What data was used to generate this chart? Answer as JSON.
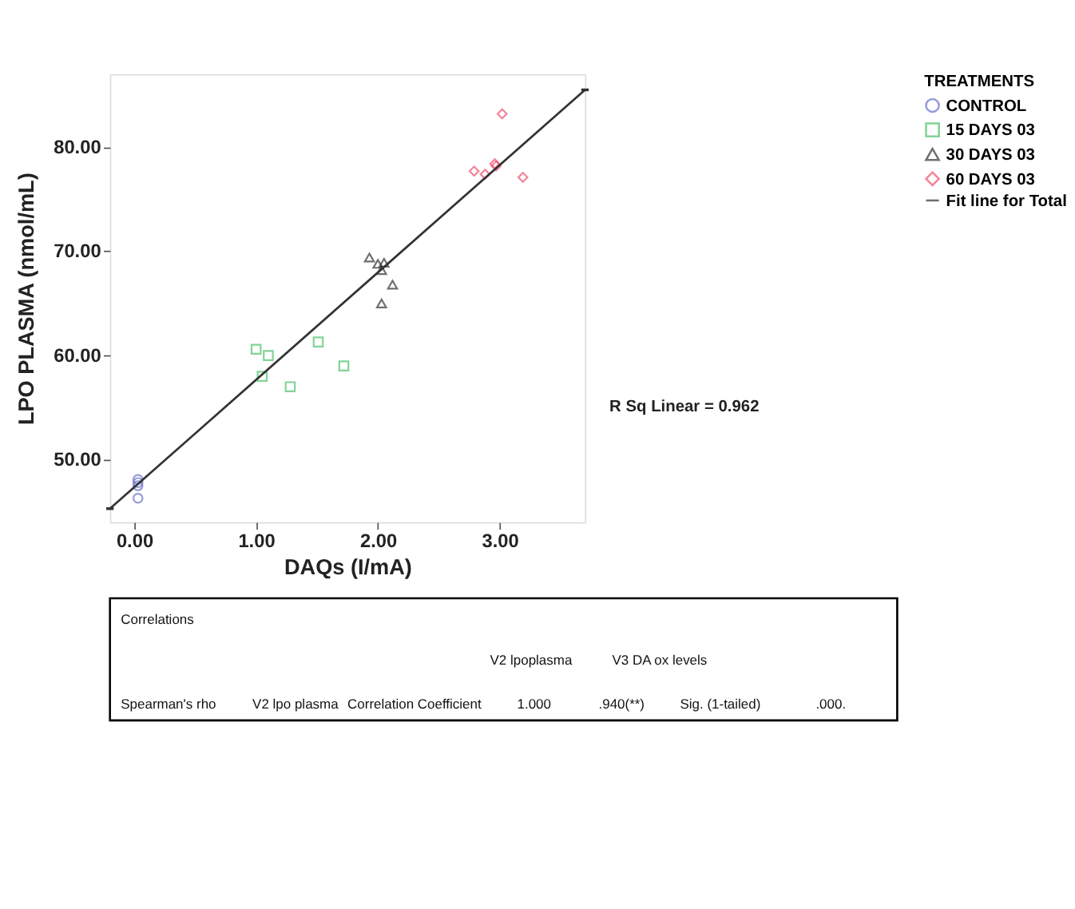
{
  "chart_data": {
    "type": "scatter",
    "xlabel": "DAQs (I/mA)",
    "ylabel": "LPO PLASMA (nmol/mL)",
    "legend_title": "TREATMENTS",
    "legend": "top right",
    "grid": false,
    "xlim": [
      -0.2,
      3.7
    ],
    "ylim": [
      44,
      87
    ],
    "xticks": [
      {
        "value": 0,
        "label": "0.00"
      },
      {
        "value": 1,
        "label": "1.00"
      },
      {
        "value": 2,
        "label": "2.00"
      },
      {
        "value": 3,
        "label": "3.00"
      }
    ],
    "yticks": [
      {
        "value": 50,
        "label": "50.00"
      },
      {
        "value": 60,
        "label": "60.00"
      },
      {
        "value": 70,
        "label": "70.00"
      },
      {
        "value": 80,
        "label": "80.00"
      }
    ],
    "series": [
      {
        "name": "CONTROL",
        "color": "#6b74c8",
        "marker": "circle",
        "x": [
          0.03,
          0.03,
          0.03,
          0.03
        ],
        "values": [
          48.1,
          47.8,
          47.5,
          46.3
        ]
      },
      {
        "name": "15 DAYS 03",
        "color": "#4cc36a",
        "marker": "square",
        "x": [
          1.0,
          1.1,
          1.05,
          1.28,
          1.51,
          1.72
        ],
        "values": [
          60.6,
          60.0,
          58.0,
          57.0,
          61.3,
          59.0
        ]
      },
      {
        "name": "30 DAYS 03",
        "color": "#333333",
        "marker": "triangle",
        "x": [
          1.93,
          2.0,
          2.05,
          2.03,
          2.12,
          2.03
        ],
        "values": [
          69.4,
          68.8,
          68.9,
          68.2,
          66.8,
          65.0
        ]
      },
      {
        "name": "60 DAYS 03",
        "color": "#f0506e",
        "marker": "diamond",
        "x": [
          3.02,
          2.79,
          2.88,
          2.96,
          2.97,
          3.19
        ],
        "values": [
          83.2,
          77.7,
          77.4,
          78.4,
          78.2,
          77.1
        ]
      },
      {
        "name": "Fit line for Total",
        "type": "line",
        "color": "#333333",
        "x": [
          -0.2,
          3.7
        ],
        "values": [
          45.3,
          85.5
        ]
      }
    ],
    "annotations": [
      "R Sq Linear = 0.962",
      "Correlations",
      "V2 lpoplasma",
      "V3 DA ox levels",
      "Spearman's rho",
      "V2 lpo plasma",
      "Correlation Coefficient",
      "1.000",
      ".940(**)",
      "Sig. (1-tailed)",
      ".000."
    ]
  }
}
